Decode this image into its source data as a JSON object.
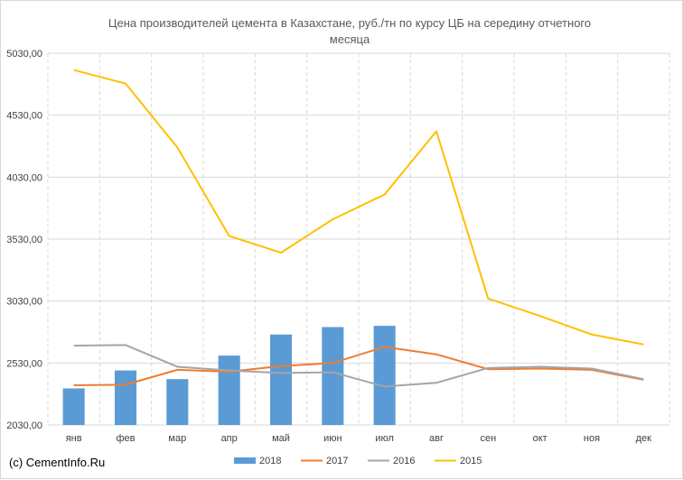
{
  "credit": "(c) CementInfo.Ru",
  "colors": {
    "s2018": "#5b9bd5",
    "s2017": "#ed7d31",
    "s2016": "#a5a5a5",
    "s2015": "#ffc000",
    "grid": "#d9d9d9",
    "text": "#595959"
  },
  "chart_data": {
    "type": "bar",
    "title_line1": "Цена производителей цемента в Казахстане, руб./тн по курсу ЦБ на середину отчетного",
    "title_line2": "месяца",
    "categories": [
      "янв",
      "фев",
      "мар",
      "апр",
      "май",
      "июн",
      "июл",
      "авг",
      "сен",
      "окт",
      "ноя",
      "дек"
    ],
    "ylim": [
      2030,
      5030
    ],
    "yticks": [
      2030,
      2530,
      3030,
      3530,
      4030,
      4530,
      5030
    ],
    "ytick_labels": [
      "2030,00",
      "2530,00",
      "3030,00",
      "3530,00",
      "4030,00",
      "4530,00",
      "5030,00"
    ],
    "grid": true,
    "legend_position": "bottom",
    "series": [
      {
        "name": "2018",
        "type": "bar",
        "values": [
          2325,
          2470,
          2400,
          2590,
          2760,
          2820,
          2830,
          null,
          null,
          null,
          null,
          null
        ]
      },
      {
        "name": "2017",
        "type": "line",
        "values": [
          2350,
          2355,
          2475,
          2460,
          2505,
          2530,
          2660,
          2600,
          2480,
          2485,
          2475,
          2395
        ]
      },
      {
        "name": "2016",
        "type": "line",
        "values": [
          2670,
          2675,
          2500,
          2470,
          2450,
          2455,
          2340,
          2370,
          2490,
          2500,
          2485,
          2400
        ]
      },
      {
        "name": "2015",
        "type": "line",
        "values": [
          4895,
          4785,
          4270,
          3555,
          3420,
          3690,
          3890,
          4400,
          3050,
          2910,
          2760,
          2680
        ]
      }
    ]
  }
}
